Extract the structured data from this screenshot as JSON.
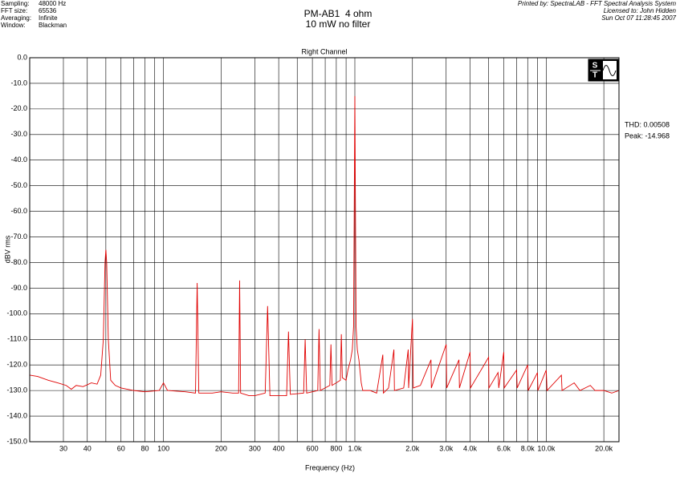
{
  "chart_data": {
    "type": "line",
    "title": "PM-AB1  4 ohm",
    "subtitle": "10 mW no filter",
    "plot_title": "Right Channel",
    "info": [
      [
        "Sampling:",
        "48000 Hz"
      ],
      [
        "FFT size:",
        "65536"
      ],
      [
        "Averaging:",
        "Infinite"
      ],
      [
        "Window:",
        "Blackman"
      ]
    ],
    "credits": [
      "Printed by: SpectraLAB - FFT Spectral Analysis System",
      "Licensed to: John Hidden",
      "Sun Oct 07 11:28:45 2007"
    ],
    "annotations": [
      "THD: 0.00508",
      "Peak: -14.968"
    ],
    "xlabel": "Frequency (Hz)",
    "ylabel": "dBV rms",
    "xscale": "log",
    "grid": true,
    "xlim": [
      20,
      24000
    ],
    "ylim": [
      -150,
      0
    ],
    "xticks": [
      30,
      40,
      60,
      80,
      100,
      200,
      300,
      400,
      600,
      800,
      {
        "value": 1000,
        "label": "1.0k"
      },
      {
        "value": 2000,
        "label": "2.0k"
      },
      {
        "value": 3000,
        "label": "3.0k"
      },
      {
        "value": 4000,
        "label": "4.0k"
      },
      {
        "value": 6000,
        "label": "6.0k"
      },
      {
        "value": 8000,
        "label": "8.0k"
      },
      {
        "value": 10000,
        "label": "10.0k"
      },
      {
        "value": 20000,
        "label": "20.0k"
      }
    ],
    "xgrid": [
      50,
      70,
      90,
      500,
      700,
      900,
      5000,
      7000,
      9000
    ],
    "yticks": [
      {
        "value": 0,
        "label": "0.0"
      },
      {
        "value": -10,
        "label": "-10.0"
      },
      {
        "value": -20,
        "label": "-20.0"
      },
      {
        "value": -30,
        "label": "-30.0"
      },
      {
        "value": -40,
        "label": "-40.0"
      },
      {
        "value": -50,
        "label": "-50.0"
      },
      {
        "value": -60,
        "label": "-60.0"
      },
      {
        "value": -70,
        "label": "-70.0"
      },
      {
        "value": -80,
        "label": "-80.0"
      },
      {
        "value": -90,
        "label": "-90.0"
      },
      {
        "value": -100,
        "label": "-100.0"
      },
      {
        "value": -110,
        "label": "-110.0"
      },
      {
        "value": -120,
        "label": "-120.0"
      },
      {
        "value": -130,
        "label": "-130.0"
      },
      {
        "value": -140,
        "label": "-140.0"
      },
      {
        "value": -150,
        "label": "-150.0"
      }
    ],
    "x": [
      20,
      22,
      25,
      28,
      31,
      33,
      35,
      38,
      42,
      45,
      47,
      48.5,
      49.5,
      50,
      50.5,
      51.5,
      53,
      56,
      60,
      70,
      80,
      95,
      100,
      105,
      130,
      147,
      150,
      153,
      180,
      200,
      230,
      247,
      250,
      253,
      280,
      300,
      340,
      350,
      360,
      400,
      440,
      450,
      460,
      540,
      550,
      560,
      640,
      650,
      660,
      740,
      750,
      760,
      840,
      850,
      860,
      900,
      920,
      950,
      970,
      985,
      995,
      1000,
      1005,
      1015,
      1030,
      1050,
      1080,
      1100,
      1200,
      1300,
      1400,
      1410,
      1500,
      1600,
      1610,
      1800,
      1900,
      1910,
      2000,
      2020,
      2200,
      2500,
      2510,
      3000,
      3020,
      3500,
      3520,
      4000,
      4020,
      5000,
      5020,
      5600,
      5650,
      6000,
      6030,
      7000,
      7050,
      8000,
      8050,
      9000,
      9050,
      10000,
      10100,
      12000,
      12100,
      14000,
      15000,
      17000,
      18000,
      20000,
      22000,
      24000
    ],
    "series": [
      {
        "color": "#e00000",
        "values": [
          -124,
          -124.5,
          -126,
          -127,
          -128,
          -129.5,
          -128,
          -128.5,
          -127,
          -127.5,
          -124,
          -110,
          -80,
          -75,
          -80,
          -110,
          -126,
          -128,
          -129,
          -130,
          -130.5,
          -130,
          -127,
          -130,
          -130.5,
          -131,
          -88,
          -131,
          -131,
          -130.5,
          -131,
          -131,
          -87,
          -131,
          -132,
          -132,
          -131,
          -97,
          -132,
          -132,
          -132,
          -107,
          -131.5,
          -131,
          -110,
          -131,
          -130,
          -106,
          -130,
          -128,
          -112,
          -128,
          -126,
          -108,
          -125,
          -126,
          -122,
          -118,
          -114,
          -105,
          -45,
          -15,
          -45,
          -105,
          -114,
          -118,
          -127,
          -130,
          -130,
          -131,
          -116,
          -131,
          -129,
          -114,
          -130,
          -129,
          -114,
          -129,
          -102,
          -129,
          -128,
          -118,
          -129,
          -112,
          -129,
          -118,
          -129,
          -115,
          -129,
          -117,
          -129,
          -123,
          -129,
          -115,
          -129,
          -122,
          -129,
          -120,
          -130,
          -123,
          -130,
          -122,
          -130,
          -124,
          -130,
          -127,
          -130,
          -128,
          -130,
          -130,
          -131,
          -130
        ]
      }
    ]
  }
}
